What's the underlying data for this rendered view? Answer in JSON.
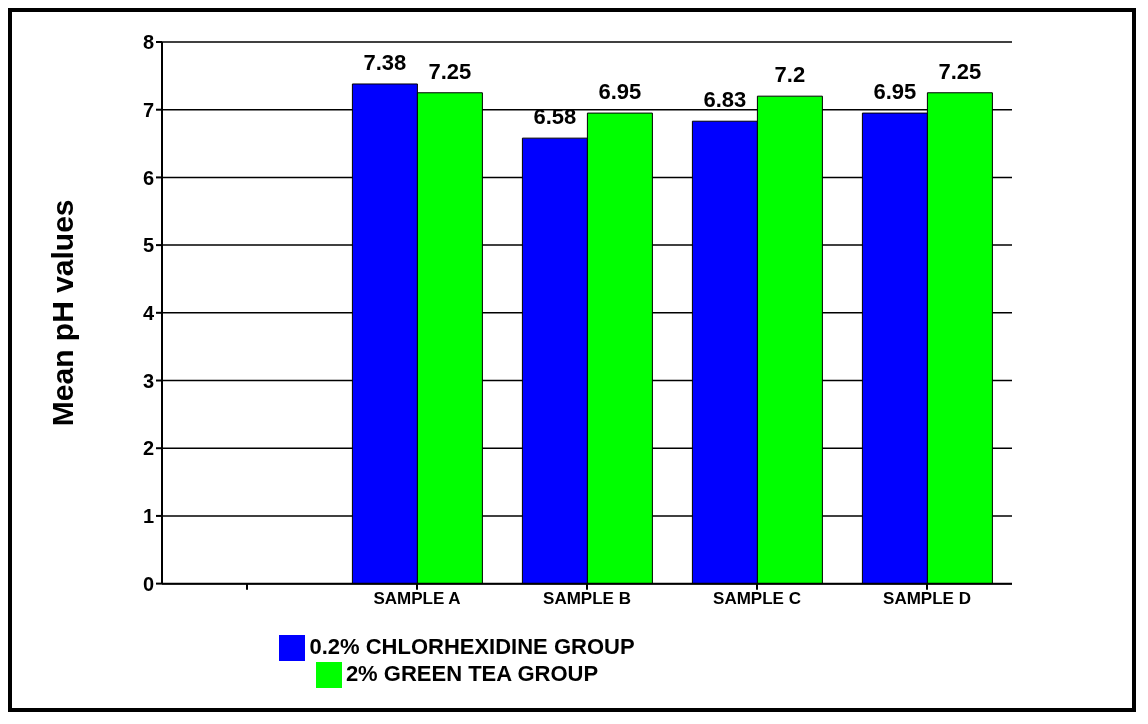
{
  "chart_data": {
    "type": "bar",
    "ylabel": "Mean pH values",
    "categories": [
      null,
      "SAMPLE A",
      "SAMPLE B",
      "SAMPLE C",
      "SAMPLE D"
    ],
    "series": [
      {
        "name": "0.2% CHLORHEXIDINE GROUP",
        "color": "#0000ff",
        "values": [
          null,
          7.38,
          6.58,
          6.83,
          6.95
        ]
      },
      {
        "name": "2% GREEN TEA GROUP",
        "color": "#00ff00",
        "values": [
          null,
          7.25,
          6.95,
          7.2,
          7.25
        ]
      }
    ],
    "ylim": [
      0,
      8
    ],
    "yticks": [
      0,
      1,
      2,
      3,
      4,
      5,
      6,
      7,
      8
    ],
    "grid": "y",
    "legend": "bottom",
    "data_labels": true
  }
}
